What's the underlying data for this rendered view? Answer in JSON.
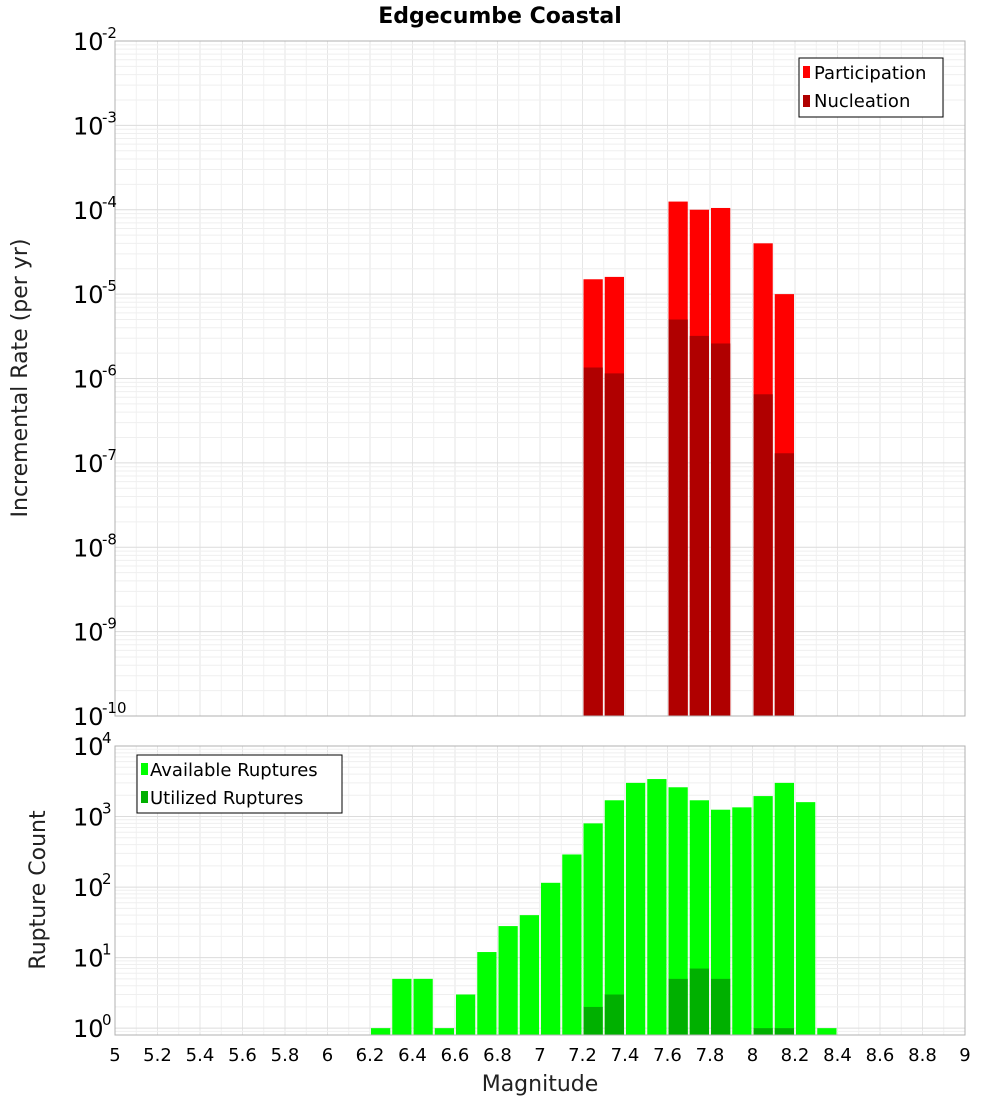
{
  "chart_data": [
    {
      "type": "bar",
      "title": "Edgecumbe Coastal",
      "ylabel": "Incremental Rate (per yr)",
      "yscale": "log",
      "ylim": [
        1e-10,
        0.01
      ],
      "xlim": [
        5,
        9
      ],
      "grid": true,
      "legend_position": "top-right",
      "ytick_labels": [
        {
          "base": "10",
          "exp": "-10"
        },
        {
          "base": "10",
          "exp": "-9"
        },
        {
          "base": "10",
          "exp": "-8"
        },
        {
          "base": "10",
          "exp": "-7"
        },
        {
          "base": "10",
          "exp": "-6"
        },
        {
          "base": "10",
          "exp": "-5"
        },
        {
          "base": "10",
          "exp": "-4"
        },
        {
          "base": "10",
          "exp": "-3"
        },
        {
          "base": "10",
          "exp": "-2"
        }
      ],
      "series": [
        {
          "name": "Participation",
          "color": "#ff0000",
          "x": [
            7.25,
            7.35,
            7.65,
            7.75,
            7.85,
            8.05,
            8.15
          ],
          "values": [
            1.5e-05,
            1.6e-05,
            0.000125,
            0.0001,
            0.000105,
            4e-05,
            1e-05
          ]
        },
        {
          "name": "Nucleation",
          "color": "#b00000",
          "x": [
            7.25,
            7.35,
            7.65,
            7.75,
            7.85,
            8.05,
            8.15
          ],
          "values": [
            1.35e-06,
            1.15e-06,
            5e-06,
            3.2e-06,
            2.6e-06,
            6.5e-07,
            1.3e-07
          ]
        }
      ]
    },
    {
      "type": "bar",
      "xlabel": "Magnitude",
      "ylabel": "Rupture Count",
      "yscale": "log",
      "ylim": [
        0.8,
        10000
      ],
      "xlim": [
        5,
        9
      ],
      "grid": true,
      "legend_position": "top-left",
      "xtick_labels": [
        "5",
        "5.2",
        "5.4",
        "5.6",
        "5.8",
        "6",
        "6.2",
        "6.4",
        "6.6",
        "6.8",
        "7",
        "7.2",
        "7.4",
        "7.6",
        "7.8",
        "8",
        "8.2",
        "8.4",
        "8.6",
        "8.8",
        "9"
      ],
      "ytick_labels": [
        {
          "base": "10",
          "exp": "0"
        },
        {
          "base": "10",
          "exp": "1"
        },
        {
          "base": "10",
          "exp": "2"
        },
        {
          "base": "10",
          "exp": "3"
        },
        {
          "base": "10",
          "exp": "4"
        }
      ],
      "series": [
        {
          "name": "Available Ruptures",
          "color": "#00ff00",
          "x": [
            6.25,
            6.35,
            6.45,
            6.55,
            6.65,
            6.75,
            6.85,
            6.95,
            7.05,
            7.15,
            7.25,
            7.35,
            7.45,
            7.55,
            7.65,
            7.75,
            7.85,
            7.95,
            8.05,
            8.15,
            8.25,
            8.35
          ],
          "values": [
            1,
            5,
            5,
            1,
            3,
            12,
            28,
            40,
            115,
            290,
            800,
            1700,
            3000,
            3400,
            2600,
            1700,
            1250,
            1350,
            1950,
            3000,
            1600,
            1
          ]
        },
        {
          "name": "Utilized Ruptures",
          "color": "#00b000",
          "x": [
            7.25,
            7.35,
            7.65,
            7.75,
            7.85,
            8.05,
            8.15
          ],
          "values": [
            2,
            3,
            5,
            7,
            5,
            1,
            1
          ]
        }
      ]
    }
  ]
}
